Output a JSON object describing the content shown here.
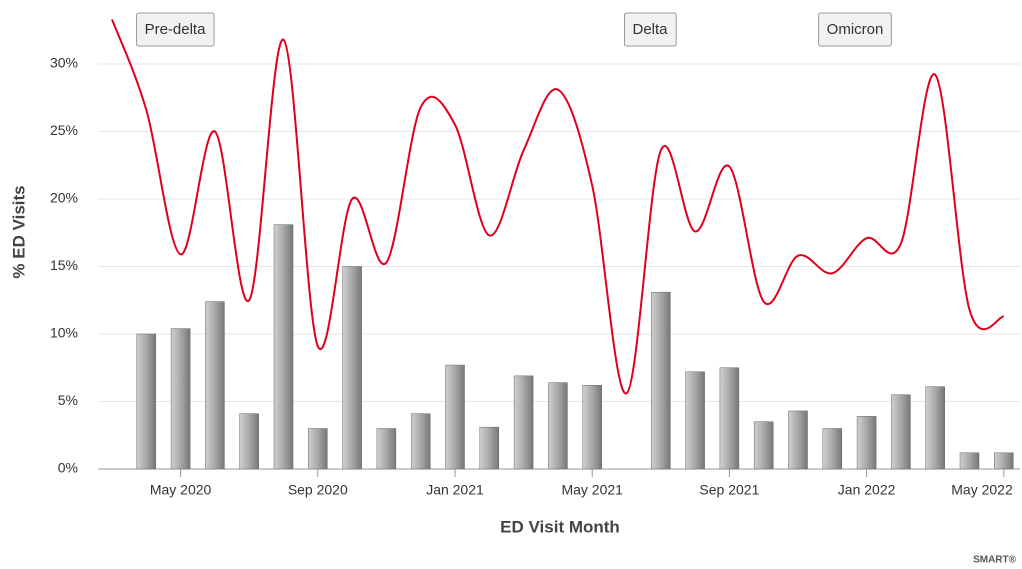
{
  "chart_data": {
    "type": "bar",
    "x_label": "ED Visit Month",
    "y_label": "% ED Visits",
    "annotations": [
      "Pre-delta",
      "Delta",
      "Omicron"
    ],
    "credit": "SMART®",
    "categories": [
      null,
      null,
      "May 2020",
      null,
      null,
      null,
      "Sep 2020",
      null,
      null,
      null,
      "Jan 2021",
      null,
      null,
      null,
      "May 2021",
      null,
      null,
      null,
      "Sep 2021",
      null,
      null,
      null,
      "Jan 2022",
      null,
      null,
      null,
      "May 2022"
    ],
    "series": [
      {
        "type": "bar",
        "color": "#8c8c8c",
        "values": [
          null,
          10.0,
          10.4,
          12.4,
          4.1,
          18.1,
          3.0,
          15.0,
          3.0,
          4.1,
          7.7,
          3.1,
          6.9,
          6.4,
          6.2,
          null,
          13.1,
          7.2,
          7.5,
          3.5,
          4.3,
          3.0,
          3.9,
          5.5,
          6.1,
          1.2,
          1.2
        ]
      },
      {
        "type": "line",
        "color": "#e0001b",
        "values": [
          33.3,
          26.6,
          15.9,
          25.0,
          12.5,
          31.8,
          9.1,
          20.0,
          15.3,
          26.8,
          25.5,
          17.3,
          23.6,
          28.1,
          21.0,
          5.6,
          23.6,
          17.6,
          22.4,
          12.4,
          15.8,
          14.5,
          17.1,
          16.7,
          29.2,
          11.8,
          11.3
        ]
      }
    ],
    "ylim": [
      0,
      34
    ],
    "yticks": [
      {
        "value": 0,
        "label": "0%"
      },
      {
        "value": 5,
        "label": "5%"
      },
      {
        "value": 10,
        "label": "10%"
      },
      {
        "value": 15,
        "label": "15%"
      },
      {
        "value": 20,
        "label": "20%"
      },
      {
        "value": 25,
        "label": "25%"
      },
      {
        "value": 30,
        "label": "30%"
      }
    ],
    "grid": true
  }
}
